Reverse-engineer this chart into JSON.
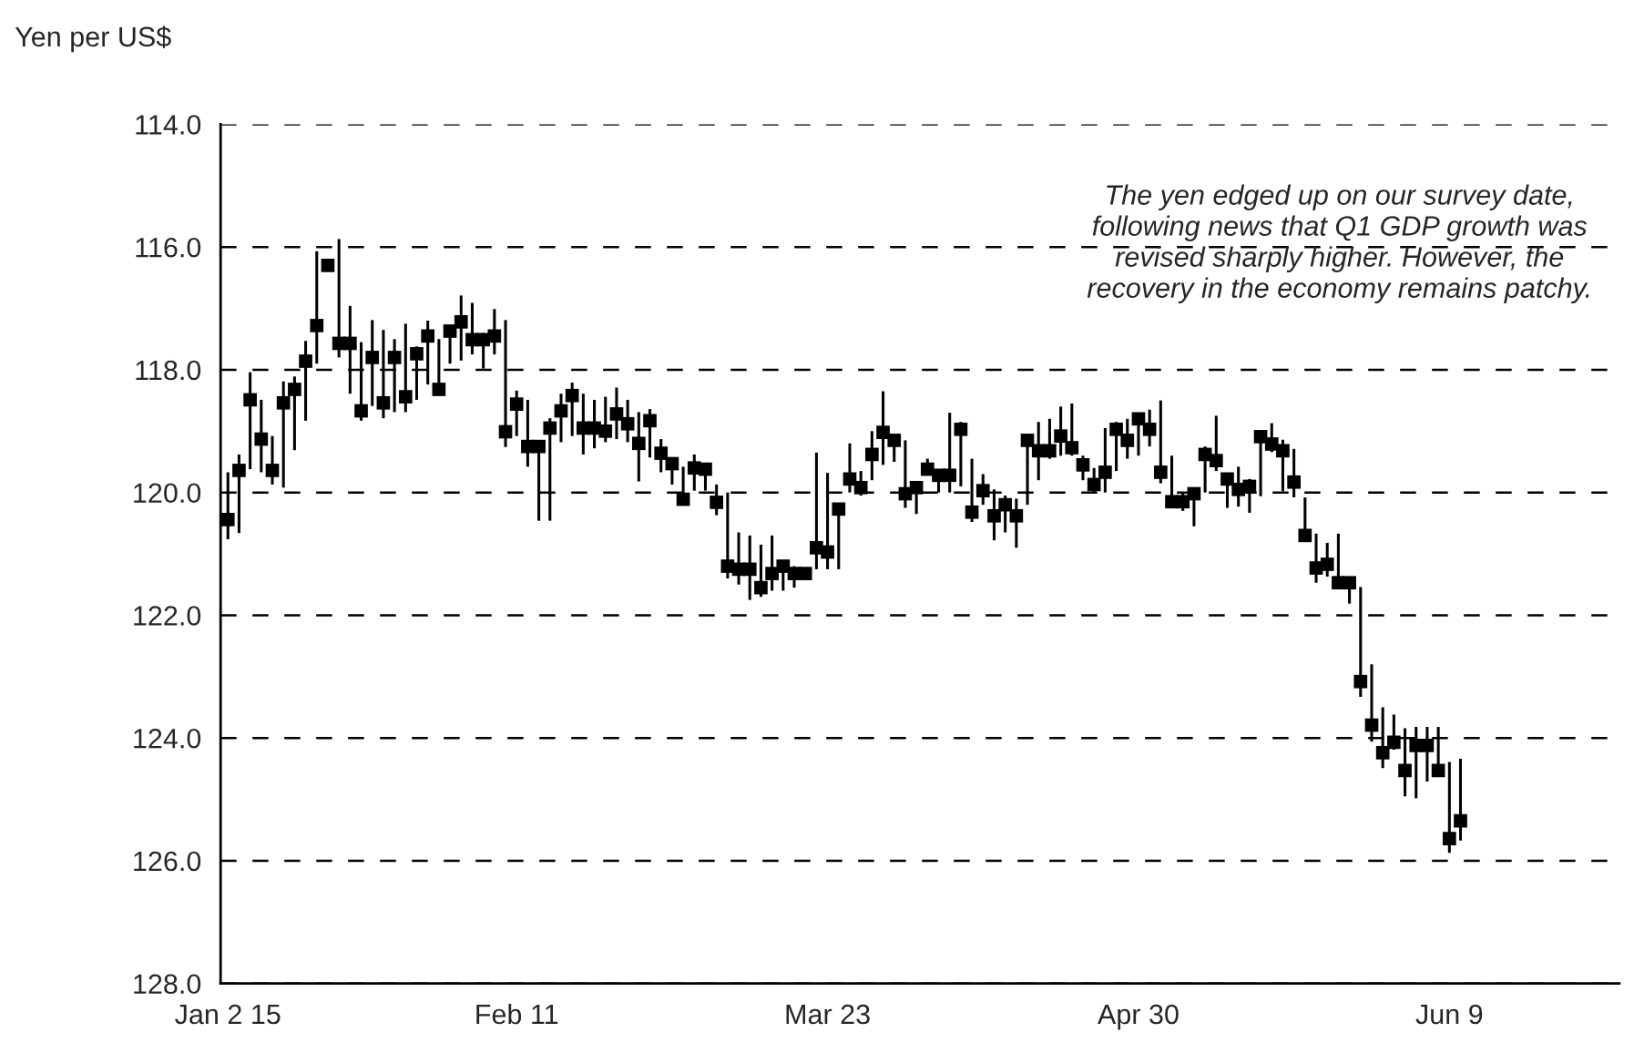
{
  "chart_data": {
    "type": "scatter",
    "ylabel": "Yen per US$",
    "annotations": [
      "The yen edged up on our survey date,\nfollowing news that Q1 GDP growth was\nrevised sharply higher. However, the\nrecovery in the economy remains patchy."
    ],
    "categories": [
      "Jan 2 15",
      null,
      null,
      null,
      null,
      null,
      null,
      null,
      null,
      null,
      null,
      null,
      null,
      null,
      null,
      null,
      null,
      null,
      null,
      null,
      null,
      null,
      null,
      null,
      null,
      null,
      "Feb 11",
      null,
      null,
      null,
      null,
      null,
      null,
      null,
      null,
      null,
      null,
      null,
      null,
      null,
      null,
      null,
      null,
      null,
      null,
      null,
      null,
      null,
      null,
      null,
      null,
      null,
      null,
      null,
      "Mar 23",
      null,
      null,
      null,
      null,
      null,
      null,
      null,
      null,
      null,
      null,
      null,
      null,
      null,
      null,
      null,
      null,
      null,
      null,
      null,
      null,
      null,
      null,
      null,
      null,
      null,
      null,
      null,
      "Apr 30",
      null,
      null,
      null,
      null,
      null,
      null,
      null,
      null,
      null,
      null,
      null,
      null,
      null,
      null,
      null,
      null,
      null,
      null,
      null,
      null,
      null,
      null,
      null,
      null,
      null,
      null,
      null,
      "Jun 9",
      null
    ],
    "series": [
      {
        "color": "#000000",
        "values": [
          120.44,
          119.64,
          118.49,
          119.13,
          119.64,
          118.54,
          118.32,
          117.86,
          117.28,
          116.3,
          117.57,
          117.57,
          118.67,
          117.8,
          118.54,
          117.8,
          118.44,
          117.74,
          117.45,
          118.32,
          117.37,
          117.22,
          117.51,
          117.51,
          117.45,
          119.01,
          118.56,
          119.25,
          119.25,
          118.95,
          118.67,
          118.42,
          118.95,
          118.95,
          119.0,
          118.72,
          118.88,
          119.2,
          118.83,
          119.36,
          119.53,
          120.11,
          119.6,
          119.62,
          120.16,
          121.2,
          121.25,
          121.25,
          121.55,
          121.32,
          121.2,
          121.32,
          121.32,
          120.9,
          120.97,
          120.27,
          119.78,
          119.92,
          119.38,
          119.02,
          119.15,
          120.02,
          119.92,
          119.62,
          119.72,
          119.72,
          118.97,
          120.32,
          119.97,
          120.38,
          120.2,
          120.38,
          119.15,
          119.32,
          119.32,
          119.08,
          119.27,
          119.55,
          119.87,
          119.67,
          118.97,
          119.15,
          118.8,
          118.97,
          119.67,
          120.15,
          120.15,
          120.02,
          119.38,
          119.48,
          119.78,
          119.95,
          119.9,
          119.09,
          119.21,
          119.32,
          119.83,
          120.7,
          121.23,
          121.17,
          121.47,
          121.47,
          123.08,
          123.79,
          124.24,
          124.07,
          124.53,
          124.12,
          124.12,
          124.53,
          125.64,
          125.35
        ],
        "errors": [
          [
            119.67,
            120.76
          ],
          [
            119.38,
            120.66
          ],
          [
            118.04,
            119.62
          ],
          [
            118.49,
            119.67
          ],
          [
            119.08,
            119.87
          ],
          [
            118.19,
            119.92
          ],
          [
            118.11,
            119.31
          ],
          [
            117.53,
            118.83
          ],
          [
            116.07,
            117.9
          ],
          [
            116.2,
            116.4
          ],
          [
            115.87,
            117.8
          ],
          [
            116.96,
            118.39
          ],
          [
            117.55,
            118.83
          ],
          [
            117.19,
            118.59
          ],
          [
            117.35,
            118.79
          ],
          [
            117.5,
            118.69
          ],
          [
            117.25,
            118.69
          ],
          [
            117.62,
            118.49
          ],
          [
            117.2,
            118.24
          ],
          [
            117.5,
            118.39
          ],
          [
            117.28,
            117.9
          ],
          [
            116.79,
            117.85
          ],
          [
            116.91,
            117.75
          ],
          [
            117.4,
            117.98
          ],
          [
            117.01,
            117.75
          ],
          [
            117.19,
            119.26
          ],
          [
            118.34,
            119.08
          ],
          [
            118.49,
            119.58
          ],
          [
            119.18,
            120.46
          ],
          [
            118.79,
            120.46
          ],
          [
            118.39,
            119.18
          ],
          [
            118.21,
            119.08
          ],
          [
            118.39,
            119.38
          ],
          [
            118.49,
            119.28
          ],
          [
            118.44,
            119.18
          ],
          [
            118.29,
            119.13
          ],
          [
            118.49,
            119.18
          ],
          [
            118.69,
            119.82
          ],
          [
            118.64,
            119.43
          ],
          [
            119.13,
            119.67
          ],
          [
            119.43,
            119.87
          ],
          [
            119.58,
            120.17
          ],
          [
            119.38,
            119.97
          ],
          [
            119.58,
            119.97
          ],
          [
            119.87,
            120.37
          ],
          [
            120.0,
            121.4
          ],
          [
            120.65,
            121.5
          ],
          [
            120.7,
            121.75
          ],
          [
            120.85,
            121.7
          ],
          [
            120.7,
            121.6
          ],
          [
            121.15,
            121.6
          ],
          [
            121.2,
            121.55
          ],
          [
            121.25,
            121.4
          ],
          [
            119.35,
            121.25
          ],
          [
            119.68,
            121.25
          ],
          [
            120.2,
            121.25
          ],
          [
            119.2,
            120.0
          ],
          [
            119.65,
            120.05
          ],
          [
            119.0,
            119.8
          ],
          [
            118.35,
            119.55
          ],
          [
            119.1,
            119.5
          ],
          [
            119.15,
            120.25
          ],
          [
            119.85,
            120.35
          ],
          [
            119.45,
            119.7
          ],
          [
            119.62,
            120.0
          ],
          [
            118.7,
            120.0
          ],
          [
            118.85,
            119.9
          ],
          [
            119.45,
            120.48
          ],
          [
            119.7,
            120.2
          ],
          [
            119.95,
            120.78
          ],
          [
            120.05,
            120.65
          ],
          [
            120.1,
            120.9
          ],
          [
            119.1,
            120.2
          ],
          [
            118.85,
            119.8
          ],
          [
            118.8,
            119.45
          ],
          [
            118.6,
            119.4
          ],
          [
            118.55,
            119.4
          ],
          [
            119.4,
            119.8
          ],
          [
            119.6,
            120.0
          ],
          [
            118.95,
            120.0
          ],
          [
            118.85,
            119.65
          ],
          [
            118.8,
            119.45
          ],
          [
            118.7,
            119.4
          ],
          [
            118.65,
            119.25
          ],
          [
            118.5,
            119.85
          ],
          [
            119.4,
            120.25
          ],
          [
            120.0,
            120.3
          ],
          [
            119.95,
            120.55
          ],
          [
            119.25,
            120.0
          ],
          [
            118.75,
            119.65
          ],
          [
            119.7,
            120.25
          ],
          [
            119.58,
            120.23
          ],
          [
            119.78,
            120.33
          ],
          [
            119.09,
            120.06
          ],
          [
            118.87,
            119.34
          ],
          [
            119.14,
            119.98
          ],
          [
            119.29,
            120.08
          ],
          [
            120.08,
            120.77
          ],
          [
            120.67,
            121.47
          ],
          [
            120.82,
            121.37
          ],
          [
            120.67,
            121.56
          ],
          [
            121.37,
            121.81
          ],
          [
            121.54,
            123.33
          ],
          [
            122.8,
            124.06
          ],
          [
            123.5,
            124.49
          ],
          [
            123.62,
            124.19
          ],
          [
            123.84,
            124.95
          ],
          [
            123.82,
            124.98
          ],
          [
            123.82,
            124.71
          ],
          [
            123.82,
            124.58
          ],
          [
            124.39,
            125.87
          ],
          [
            124.34,
            125.67
          ]
        ]
      }
    ],
    "ylim": [
      128,
      114
    ],
    "yticks": [
      {
        "value": 114,
        "label": "114.0"
      },
      {
        "value": 116,
        "label": "116.0"
      },
      {
        "value": 118,
        "label": "118.0"
      },
      {
        "value": 120,
        "label": "120.0"
      },
      {
        "value": 122,
        "label": "122.0"
      },
      {
        "value": 124,
        "label": "124.0"
      },
      {
        "value": 126,
        "label": "126.0"
      },
      {
        "value": 128,
        "label": "128.0"
      }
    ],
    "grid": "y",
    "marker": "square",
    "legend": false
  }
}
